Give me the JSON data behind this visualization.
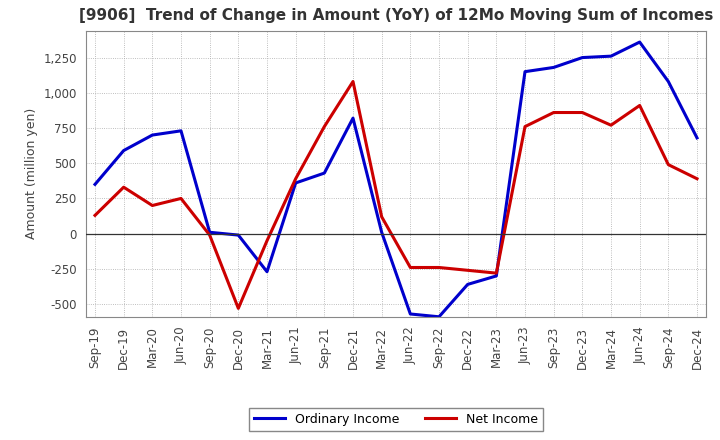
{
  "title": "[9906]  Trend of Change in Amount (YoY) of 12Mo Moving Sum of Incomes",
  "ylabel": "Amount (million yen)",
  "background_color": "#ffffff",
  "plot_bg_color": "#ffffff",
  "grid_color": "#aaaaaa",
  "x_labels": [
    "Sep-19",
    "Dec-19",
    "Mar-20",
    "Jun-20",
    "Sep-20",
    "Dec-20",
    "Mar-21",
    "Jun-21",
    "Sep-21",
    "Dec-21",
    "Mar-22",
    "Jun-22",
    "Sep-22",
    "Dec-22",
    "Mar-23",
    "Jun-23",
    "Sep-23",
    "Dec-23",
    "Mar-24",
    "Jun-24",
    "Sep-24",
    "Dec-24"
  ],
  "ordinary_income": [
    350,
    590,
    700,
    730,
    10,
    -10,
    -270,
    360,
    430,
    820,
    10,
    -570,
    -590,
    -360,
    -300,
    1150,
    1180,
    1250,
    1260,
    1360,
    1080,
    680
  ],
  "net_income": [
    130,
    330,
    200,
    250,
    -10,
    -530,
    -50,
    390,
    760,
    1080,
    120,
    -240,
    -240,
    -260,
    -280,
    760,
    860,
    860,
    770,
    910,
    490,
    390
  ],
  "ordinary_color": "#0000cc",
  "net_color": "#cc0000",
  "ylim": [
    -590,
    1440
  ],
  "yticks": [
    -500,
    -250,
    0,
    250,
    500,
    750,
    1000,
    1250
  ],
  "line_width": 2.2,
  "legend_labels": [
    "Ordinary Income",
    "Net Income"
  ],
  "title_fontsize": 11,
  "axis_label_fontsize": 9,
  "tick_fontsize": 8.5
}
